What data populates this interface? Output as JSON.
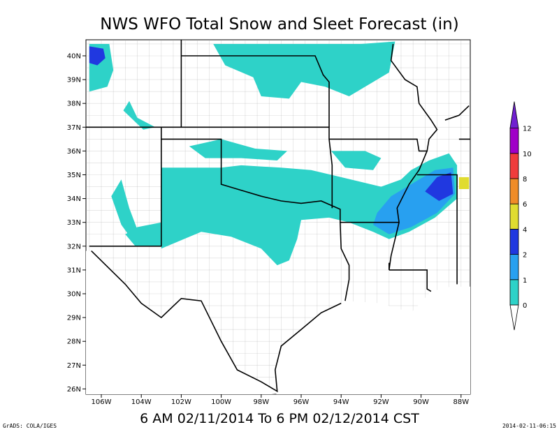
{
  "title": "NWS WFO Total Snow and Sleet Forecast (in)",
  "map": {
    "lat_labels": [
      "40N",
      "39N",
      "38N",
      "37N",
      "36N",
      "35N",
      "34N",
      "33N",
      "32N",
      "31N",
      "30N",
      "29N",
      "28N",
      "27N",
      "26N"
    ],
    "lon_labels": [
      "106W",
      "104W",
      "102W",
      "100W",
      "98W",
      "96W",
      "94W",
      "92W",
      "90W",
      "88W"
    ]
  },
  "legend": {
    "levels": [
      0,
      1,
      2,
      4,
      6,
      8,
      10,
      12
    ],
    "colors": [
      "#2ed2c8",
      "#28a0f0",
      "#2038e0",
      "#e0dc30",
      "#f08c28",
      "#f03c3c",
      "#a000c8"
    ],
    "over_color": "#7020d0",
    "under_color": "#ffffff"
  },
  "caption": "6 AM 02/11/2014 To 6 PM 02/12/2014 CST",
  "credit": "GrADS: COLA/IGES",
  "timestamp": "2014-02-11-06:15"
}
